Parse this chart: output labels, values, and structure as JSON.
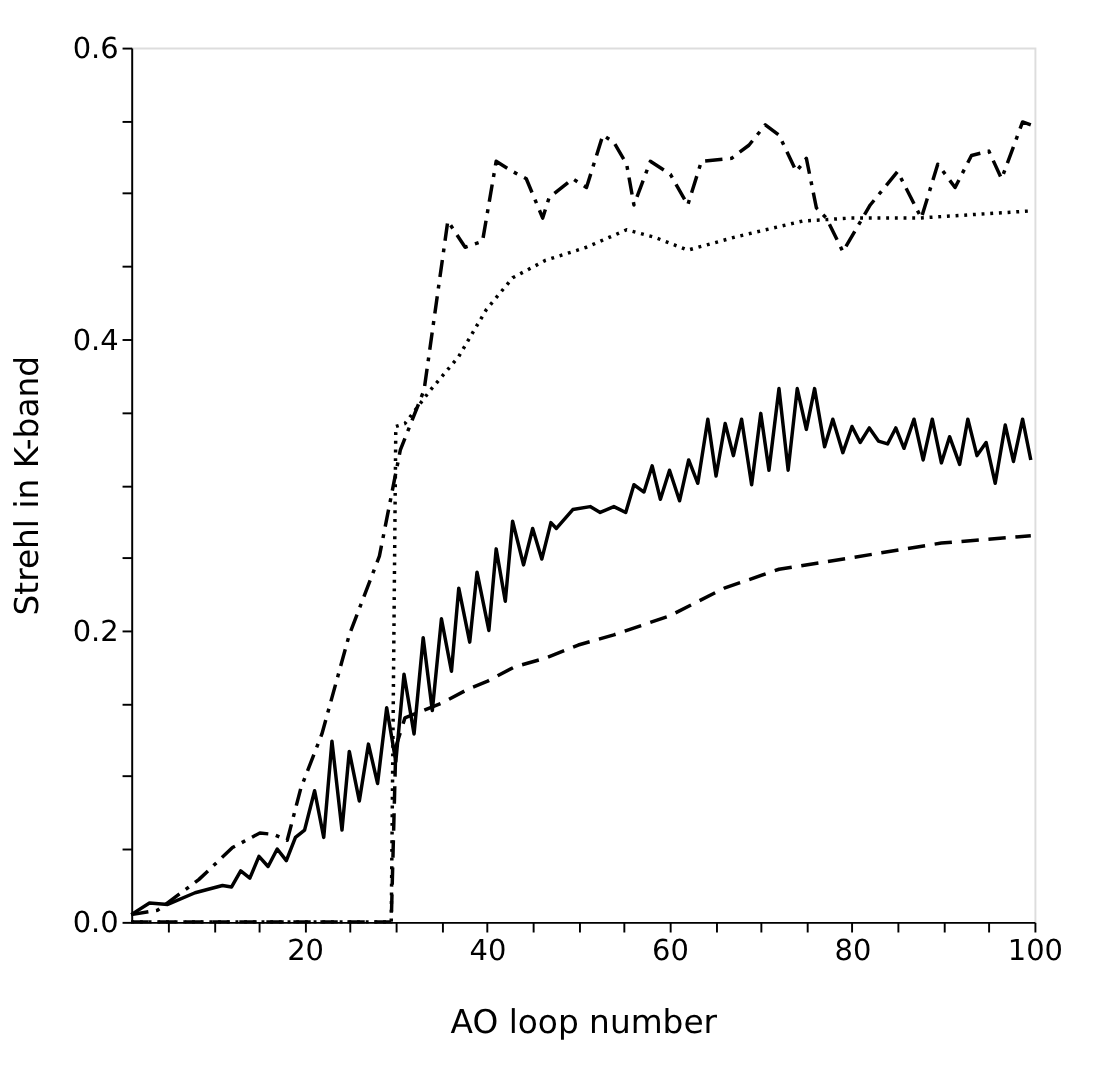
{
  "chart_data": {
    "type": "line",
    "xlabel": "AO loop number",
    "ylabel": "Strehl in K-band",
    "xlim": [
      1,
      100
    ],
    "ylim": [
      0,
      0.6
    ],
    "xticks": [
      {
        "value": 5,
        "label": null
      },
      {
        "value": 10,
        "label": null
      },
      {
        "value": 15,
        "label": null
      },
      20,
      {
        "value": 25,
        "label": null
      },
      {
        "value": 30,
        "label": null
      },
      {
        "value": 35,
        "label": null
      },
      40,
      {
        "value": 45,
        "label": null
      },
      {
        "value": 50,
        "label": null
      },
      {
        "value": 55,
        "label": null
      },
      60,
      {
        "value": 65,
        "label": null
      },
      {
        "value": 70,
        "label": null
      },
      {
        "value": 75,
        "label": null
      },
      80,
      {
        "value": 85,
        "label": null
      },
      {
        "value": 90,
        "label": null
      },
      {
        "value": 95,
        "label": null
      },
      100
    ],
    "yticks": [
      {
        "value": 0,
        "label": "0.0"
      },
      {
        "value": 0.05,
        "label": null
      },
      {
        "value": 0.1,
        "label": null
      },
      {
        "value": 0.15,
        "label": null
      },
      {
        "value": 0.2,
        "label": "0.2"
      },
      {
        "value": 0.25,
        "label": null
      },
      {
        "value": 0.3,
        "label": null
      },
      {
        "value": 0.35,
        "label": null
      },
      {
        "value": 0.4,
        "label": "0.4"
      },
      {
        "value": 0.45,
        "label": null
      },
      {
        "value": 0.5,
        "label": null
      },
      {
        "value": 0.55,
        "label": null
      },
      {
        "value": 0.6,
        "label": "0.6"
      }
    ],
    "grid": false,
    "legend": false,
    "marker": "none",
    "series": [
      {
        "color": "#000000",
        "line_style": "solid",
        "x": [
          1,
          3,
          5,
          8,
          11,
          12,
          13,
          14,
          15,
          16,
          17,
          18,
          19,
          20,
          21.1,
          22.1,
          23,
          24.1,
          24.9,
          26,
          27,
          28,
          29,
          30,
          30.9,
          32,
          33,
          34,
          35,
          36.1,
          36.9,
          38.1,
          38.9,
          40.2,
          41,
          42,
          42.8,
          44,
          45,
          46,
          47,
          47.6,
          49.4,
          51.3,
          52.4,
          53.9,
          55.2,
          56.1,
          57.2,
          58.1,
          59,
          60,
          61.1,
          62.1,
          63.1,
          64.2,
          65.1,
          66.1,
          67,
          67.9,
          69,
          70,
          70.9,
          72,
          73,
          74,
          75,
          75.9,
          77,
          77.9,
          79,
          80,
          80.9,
          81.9,
          82.9,
          83.9,
          84.8,
          85.7,
          86.8,
          87.8,
          88.8,
          89.8,
          90.7,
          91.8,
          92.7,
          93.7,
          94.7,
          95.7,
          96.8,
          97.7,
          98.7,
          99.6
        ],
        "values": [
          0.005,
          0.013,
          0.012,
          0.02,
          0.025,
          0.024,
          0.035,
          0.03,
          0.045,
          0.038,
          0.05,
          0.042,
          0.058,
          0.063,
          0.09,
          0.058,
          0.124,
          0.063,
          0.117,
          0.083,
          0.122,
          0.095,
          0.147,
          0.11,
          0.17,
          0.129,
          0.195,
          0.145,
          0.208,
          0.172,
          0.229,
          0.192,
          0.24,
          0.2,
          0.256,
          0.22,
          0.275,
          0.245,
          0.27,
          0.249,
          0.274,
          0.27,
          0.283,
          0.285,
          0.281,
          0.285,
          0.281,
          0.3,
          0.295,
          0.313,
          0.29,
          0.31,
          0.289,
          0.317,
          0.301,
          0.345,
          0.306,
          0.342,
          0.32,
          0.345,
          0.3,
          0.349,
          0.31,
          0.366,
          0.31,
          0.366,
          0.338,
          0.366,
          0.326,
          0.345,
          0.322,
          0.34,
          0.329,
          0.339,
          0.33,
          0.328,
          0.339,
          0.325,
          0.345,
          0.317,
          0.345,
          0.315,
          0.333,
          0.314,
          0.345,
          0.32,
          0.329,
          0.301,
          0.341,
          0.316,
          0.345,
          0.317
        ]
      },
      {
        "color": "#000000",
        "line_style": "dashed",
        "x": [
          1,
          29.5,
          30,
          31,
          33,
          35,
          38,
          40,
          43,
          46.4,
          50,
          53.9,
          60,
          66,
          72,
          80,
          89.8,
          99.6
        ],
        "values": [
          0,
          0,
          0.12,
          0.14,
          0.145,
          0.15,
          0.16,
          0.165,
          0.175,
          0.181,
          0.19,
          0.197,
          0.21,
          0.229,
          0.242,
          0.25,
          0.26,
          0.265
        ]
      },
      {
        "color": "#000000",
        "line_style": "dotted",
        "x": [
          1,
          29.5,
          30,
          31,
          33.8,
          36.9,
          39.9,
          42.8,
          46.4,
          50.9,
          55.3,
          58.3,
          62,
          67.2,
          74.6,
          79.8,
          87.2,
          99.8
        ],
        "values": [
          0,
          0,
          0.34,
          0.342,
          0.365,
          0.388,
          0.42,
          0.442,
          0.454,
          0.463,
          0.475,
          0.47,
          0.461,
          0.47,
          0.481,
          0.483,
          0.483,
          0.488
        ]
      },
      {
        "color": "#000000",
        "line_style": "dashdot",
        "x": [
          1,
          3.9,
          8.4,
          12.1,
          15.1,
          16.6,
          18.1,
          19.6,
          21.9,
          24.9,
          28.2,
          30.5,
          33.1,
          35.7,
          37.6,
          39.5,
          41,
          42.8,
          44.3,
          46.1,
          46.8,
          49.4,
          50.9,
          52.7,
          53.9,
          55.3,
          56.1,
          57.9,
          60.1,
          62,
          63.5,
          66.8,
          68.7,
          70.5,
          72,
          73.9,
          75,
          76.1,
          77.2,
          79,
          82,
          85,
          87.6,
          89.4,
          91.3,
          93.1,
          95,
          96.4,
          98.7,
          99.6
        ],
        "values": [
          0.005,
          0.008,
          0.029,
          0.051,
          0.061,
          0.06,
          0.056,
          0.092,
          0.129,
          0.197,
          0.251,
          0.324,
          0.365,
          0.481,
          0.463,
          0.467,
          0.522,
          0.515,
          0.51,
          0.483,
          0.497,
          0.51,
          0.504,
          0.54,
          0.535,
          0.52,
          0.492,
          0.522,
          0.513,
          0.492,
          0.522,
          0.524,
          0.533,
          0.547,
          0.54,
          0.515,
          0.524,
          0.49,
          0.483,
          0.46,
          0.492,
          0.515,
          0.483,
          0.52,
          0.504,
          0.526,
          0.529,
          0.51,
          0.549,
          0.547
        ]
      }
    ]
  }
}
